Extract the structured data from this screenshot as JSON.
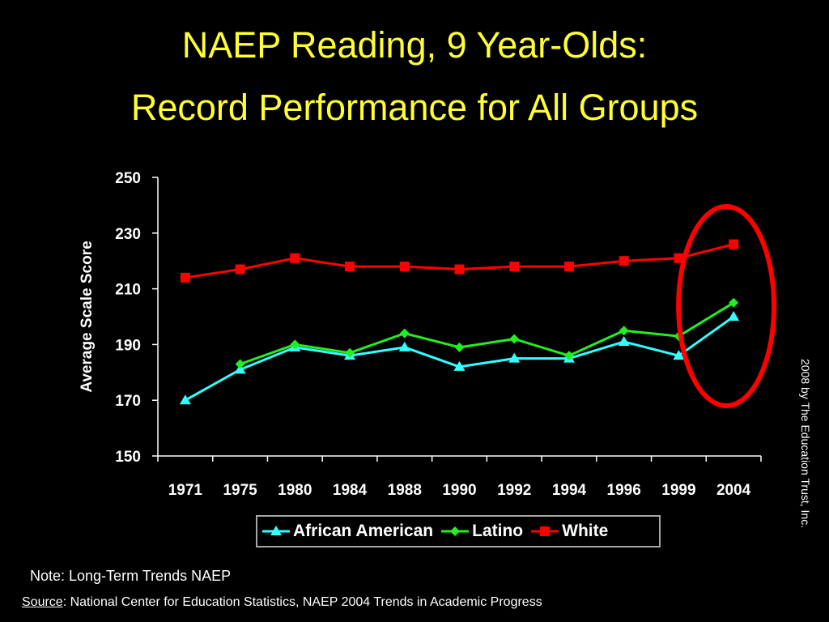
{
  "slide": {
    "title_line1": "NAEP Reading, 9 Year-Olds:",
    "title_line2": "Record Performance for All Groups",
    "note": "Note: Long-Term Trends NAEP",
    "source_label": "Source",
    "source_text": ": National Center for Education Statistics, NAEP 2004 Trends in Academic Progress",
    "credit": "2008 by The Education Trust, Inc.",
    "highlight_color": "#ff0000"
  },
  "chart_data": {
    "type": "line",
    "title": "NAEP Reading, 9 Year-Olds: Record Performance for All Groups",
    "xlabel": "",
    "ylabel": "Average Scale Score",
    "ylim": [
      150,
      250
    ],
    "yticks": [
      150,
      170,
      190,
      210,
      230,
      250
    ],
    "categories": [
      "1971",
      "1975",
      "1980",
      "1984",
      "1988",
      "1990",
      "1992",
      "1994",
      "1996",
      "1999",
      "2004"
    ],
    "grid": false,
    "legend_position": "bottom",
    "series": [
      {
        "name": "African American",
        "color": "#33ffff",
        "marker": "triangle",
        "values": [
          170,
          181,
          189,
          186,
          189,
          182,
          185,
          185,
          191,
          186,
          200
        ]
      },
      {
        "name": "Latino",
        "color": "#22ee22",
        "marker": "diamond",
        "values": [
          null,
          183,
          190,
          187,
          194,
          189,
          192,
          186,
          195,
          193,
          205
        ]
      },
      {
        "name": "White",
        "color": "#ff0000",
        "marker": "square",
        "values": [
          214,
          217,
          221,
          218,
          218,
          217,
          218,
          218,
          220,
          221,
          226
        ]
      }
    ],
    "annotations": [
      {
        "type": "ellipse",
        "target_category": "2004",
        "color": "#ff0000"
      }
    ]
  }
}
